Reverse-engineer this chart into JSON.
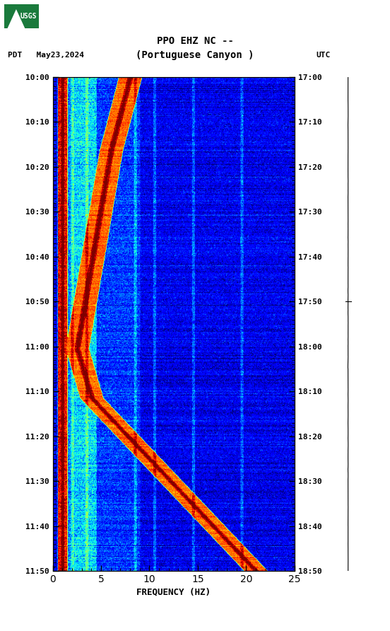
{
  "title_line1": "PPO EHZ NC --",
  "title_line2": "(Portuguese Canyon )",
  "left_label": "PDT   May23,2024",
  "right_label": "UTC",
  "xlabel": "FREQUENCY (HZ)",
  "freq_min": 0,
  "freq_max": 25,
  "yticks_pdt": [
    "10:00",
    "10:10",
    "10:20",
    "10:30",
    "10:40",
    "10:50",
    "11:00",
    "11:10",
    "11:20",
    "11:30",
    "11:40",
    "11:50"
  ],
  "yticks_utc": [
    "17:00",
    "17:10",
    "17:20",
    "17:30",
    "17:40",
    "17:50",
    "18:00",
    "18:10",
    "18:20",
    "18:30",
    "18:40",
    "18:50"
  ],
  "n_time": 660,
  "n_freq": 500,
  "bg_color": "white",
  "colormap": "jet",
  "fig_width": 5.52,
  "fig_height": 8.92,
  "vmin": -30,
  "vmax": 20
}
